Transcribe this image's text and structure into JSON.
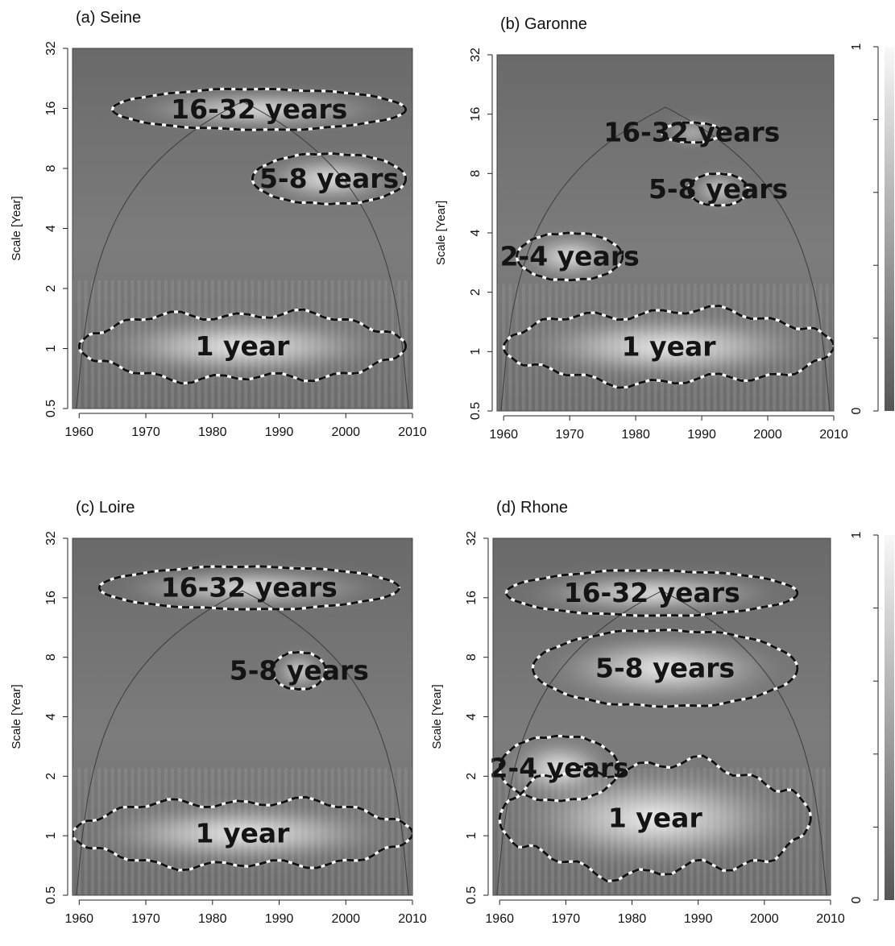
{
  "chart_data": [
    {
      "type": "heatmap",
      "title": "(a) Seine",
      "xlabel": "",
      "ylabel": "Scale [Year]",
      "xlim": [
        1959,
        2010
      ],
      "ylim": [
        0.5,
        32
      ],
      "y_scale": "log2",
      "x_ticks": [
        "1960",
        "1970",
        "1980",
        "1990",
        "2000",
        "2010"
      ],
      "y_ticks": [
        "0.5",
        "1",
        "2",
        "4",
        "8",
        "16",
        "32"
      ],
      "cone_of_influence": true,
      "significant_regions": [
        {
          "label": "16-32 years",
          "years": [
            1965,
            2009
          ],
          "scale_years": [
            12.5,
            20
          ]
        },
        {
          "label": "5-8 years",
          "years": [
            1986,
            2009
          ],
          "scale_years": [
            5.3,
            9.5
          ]
        },
        {
          "label": "1 year",
          "years": [
            1960,
            2009
          ],
          "scale_years": [
            0.7,
            1.5
          ]
        }
      ]
    },
    {
      "type": "heatmap",
      "title": "(b) Garonne",
      "xlabel": "",
      "ylabel": "Scale [Year]",
      "xlim": [
        1959,
        2010
      ],
      "ylim": [
        0.5,
        32
      ],
      "y_scale": "log2",
      "x_ticks": [
        "1960",
        "1970",
        "1980",
        "1990",
        "2000",
        "2010"
      ],
      "y_ticks": [
        "0.5",
        "1",
        "2",
        "4",
        "8",
        "16",
        "32"
      ],
      "cone_of_influence": true,
      "significant_regions": [
        {
          "label": "16-32 years",
          "years": [
            1984,
            1993
          ],
          "scale_years": [
            11.5,
            14.5
          ]
        },
        {
          "label": "5-8 years",
          "years": [
            1988,
            1997
          ],
          "scale_years": [
            5.5,
            8
          ]
        },
        {
          "label": "2-4 years",
          "years": [
            1962,
            1978
          ],
          "scale_years": [
            2.3,
            4
          ]
        },
        {
          "label": "1 year",
          "years": [
            1960,
            2010
          ],
          "scale_years": [
            0.7,
            1.6
          ]
        }
      ]
    },
    {
      "type": "heatmap",
      "title": "(c) Loire",
      "xlabel": "",
      "ylabel": "Scale [Year]",
      "xlim": [
        1959,
        2010
      ],
      "ylim": [
        0.5,
        32
      ],
      "y_scale": "log2",
      "x_ticks": [
        "1960",
        "1970",
        "1980",
        "1990",
        "2000",
        "2010"
      ],
      "y_ticks": [
        "0.5",
        "1",
        "2",
        "4",
        "8",
        "16",
        "32"
      ],
      "cone_of_influence": true,
      "significant_regions": [
        {
          "label": "16-32 years",
          "years": [
            1963,
            2008
          ],
          "scale_years": [
            14,
            23
          ]
        },
        {
          "label": "5-8 years",
          "years": [
            1989,
            1997
          ],
          "scale_years": [
            5.5,
            8.5
          ]
        },
        {
          "label": "1 year",
          "years": [
            1959,
            2010
          ],
          "scale_years": [
            0.7,
            1.5
          ]
        }
      ]
    },
    {
      "type": "heatmap",
      "title": "(d) Rhone",
      "xlabel": "",
      "ylabel": "Scale [Year]",
      "xlim": [
        1959,
        2010
      ],
      "ylim": [
        0.5,
        32
      ],
      "y_scale": "log2",
      "x_ticks": [
        "1960",
        "1970",
        "1980",
        "1990",
        "2000",
        "2010"
      ],
      "y_ticks": [
        "0.5",
        "1",
        "2",
        "4",
        "8",
        "16",
        "32"
      ],
      "cone_of_influence": true,
      "significant_regions": [
        {
          "label": "16-32 years",
          "years": [
            1961,
            2005
          ],
          "scale_years": [
            13,
            22
          ]
        },
        {
          "label": "5-8 years",
          "years": [
            1965,
            2005
          ],
          "scale_years": [
            4.5,
            11
          ]
        },
        {
          "label": "2-4 years",
          "years": [
            1960,
            1978
          ],
          "scale_years": [
            1.5,
            3.2
          ]
        },
        {
          "label": "1 year",
          "years": [
            1960,
            2007
          ],
          "scale_years": [
            0.65,
            2.3
          ]
        }
      ]
    }
  ],
  "colorbars": [
    {
      "labels": [
        "0",
        "1"
      ],
      "low_color": "#555555",
      "high_color": "#f8f8f8"
    },
    {
      "labels": [
        "0",
        "1"
      ],
      "low_color": "#555555",
      "high_color": "#f8f8f8"
    }
  ]
}
